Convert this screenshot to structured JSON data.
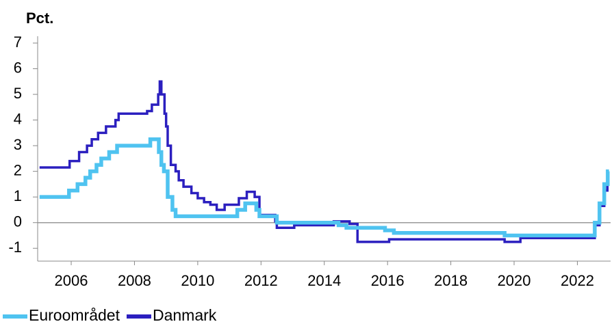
{
  "chart_data": {
    "type": "line",
    "ylabel": "Pct.",
    "xlim": [
      2005,
      2023.05
    ],
    "ylim": [
      -1.5,
      7.4
    ],
    "xticks": [
      2006,
      2008,
      2010,
      2012,
      2014,
      2016,
      2018,
      2020,
      2022
    ],
    "yticks": [
      -1,
      0,
      1,
      2,
      3,
      4,
      5,
      6,
      7
    ],
    "series": [
      {
        "name": "Danmark",
        "color": "#2b1fbf",
        "x": [
          2005,
          2005.95,
          2005.95,
          2006.25,
          2006.25,
          2006.5,
          2006.5,
          2006.65,
          2006.65,
          2006.85,
          2006.85,
          2007.1,
          2007.1,
          2007.4,
          2007.4,
          2007.5,
          2007.5,
          2008.4,
          2008.4,
          2008.55,
          2008.55,
          2008.75,
          2008.75,
          2008.8,
          2008.8,
          2008.85,
          2008.85,
          2008.95,
          2008.95,
          2009.0,
          2009.0,
          2009.05,
          2009.05,
          2009.15,
          2009.15,
          2009.3,
          2009.3,
          2009.4,
          2009.4,
          2009.55,
          2009.55,
          2009.8,
          2009.8,
          2010.0,
          2010.0,
          2010.2,
          2010.2,
          2010.4,
          2010.4,
          2010.6,
          2010.6,
          2010.85,
          2010.85,
          2011.3,
          2011.3,
          2011.55,
          2011.55,
          2011.8,
          2011.8,
          2011.95,
          2011.95,
          2012.45,
          2012.45,
          2012.5,
          2012.5,
          2013.05,
          2013.05,
          2014.3,
          2014.3,
          2014.8,
          2014.8,
          2015.05,
          2015.05,
          2016.05,
          2016.05,
          2019.7,
          2019.7,
          2020.2,
          2020.2,
          2022.55,
          2022.55,
          2022.7,
          2022.7,
          2022.85,
          2022.85,
          2022.95,
          2022.95,
          2023.0
        ],
        "values": [
          2.15,
          2.15,
          2.4,
          2.4,
          2.75,
          2.75,
          3,
          3,
          3.25,
          3.25,
          3.5,
          3.5,
          3.75,
          3.75,
          4,
          4,
          4.25,
          4.25,
          4.35,
          4.35,
          4.6,
          4.6,
          5,
          5,
          5.5,
          5.5,
          5,
          5,
          4.25,
          4.25,
          3.75,
          3.75,
          3,
          3,
          2.25,
          2.25,
          2,
          2,
          1.65,
          1.65,
          1.4,
          1.4,
          1.15,
          1.15,
          0.95,
          0.95,
          0.8,
          0.8,
          0.7,
          0.7,
          0.5,
          0.5,
          0.7,
          0.7,
          0.95,
          0.95,
          1.2,
          1.2,
          1,
          1,
          0.3,
          0.3,
          0.05,
          0.05,
          -0.2,
          -0.2,
          -0.1,
          -0.1,
          0.05,
          0.05,
          -0.05,
          -0.05,
          -0.75,
          -0.75,
          -0.65,
          -0.65,
          -0.75,
          -0.75,
          -0.6,
          -0.6,
          -0.1,
          -0.1,
          0.65,
          0.65,
          1.25,
          1.25,
          1.5,
          1.5
        ]
      },
      {
        "name": "Euroområdet",
        "color": "#4fc3f0",
        "x": [
          2005,
          2005.93,
          2005.93,
          2006.2,
          2006.2,
          2006.45,
          2006.45,
          2006.6,
          2006.6,
          2006.8,
          2006.8,
          2006.95,
          2006.95,
          2007.2,
          2007.2,
          2007.45,
          2007.45,
          2008.5,
          2008.5,
          2008.77,
          2008.77,
          2008.85,
          2008.85,
          2008.93,
          2008.93,
          2009.05,
          2009.05,
          2009.2,
          2009.2,
          2009.3,
          2009.3,
          2011.25,
          2011.25,
          2011.5,
          2011.5,
          2011.85,
          2011.85,
          2011.95,
          2011.95,
          2012.5,
          2012.5,
          2014.45,
          2014.45,
          2014.7,
          2014.7,
          2015.92,
          2015.92,
          2016.2,
          2016.2,
          2019.7,
          2019.7,
          2022.55,
          2022.55,
          2022.7,
          2022.7,
          2022.85,
          2022.85,
          2022.96,
          2022.96,
          2023.0
        ],
        "values": [
          1,
          1,
          1.25,
          1.25,
          1.5,
          1.5,
          1.75,
          1.75,
          2,
          2,
          2.25,
          2.25,
          2.5,
          2.5,
          2.75,
          2.75,
          3,
          3,
          3.25,
          3.25,
          2.75,
          2.75,
          2.25,
          2.25,
          2,
          2,
          1,
          1,
          0.5,
          0.5,
          0.25,
          0.25,
          0.5,
          0.5,
          0.75,
          0.75,
          0.5,
          0.5,
          0.25,
          0.25,
          0,
          0,
          -0.1,
          -0.1,
          -0.2,
          -0.2,
          -0.3,
          -0.3,
          -0.4,
          -0.4,
          -0.5,
          -0.5,
          0,
          0,
          0.75,
          0.75,
          1.5,
          1.5,
          2,
          2
        ]
      }
    ],
    "legend": "bottom-left"
  }
}
